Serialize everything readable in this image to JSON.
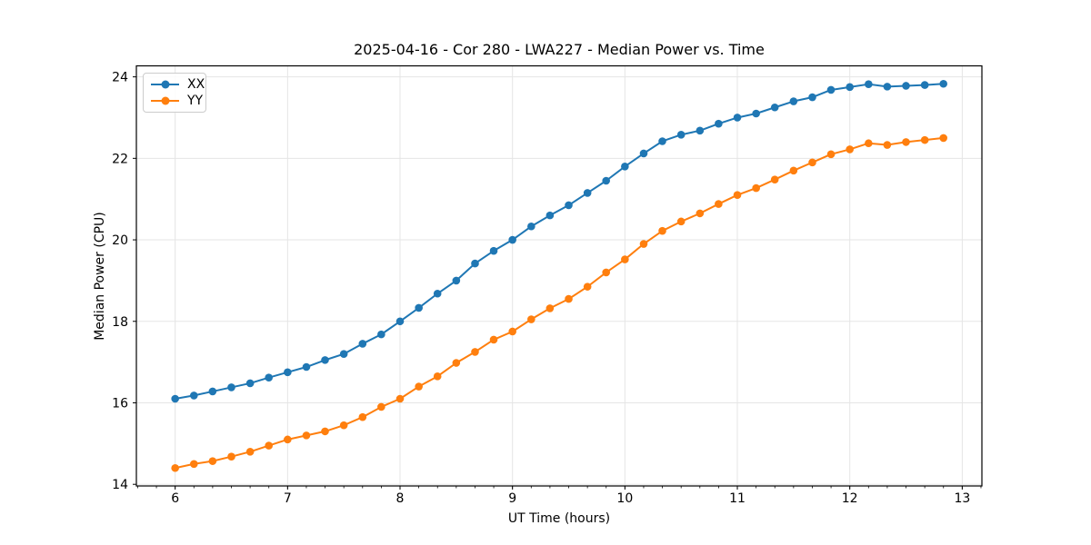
{
  "chart_data": {
    "type": "line",
    "title": "2025-04-16 - Cor 280 - LWA227 - Median Power vs. Time",
    "xlabel": "UT Time (hours)",
    "ylabel": "Median Power (CPU)",
    "xlim": [
      5.655,
      13.175
    ],
    "ylim": [
      13.96,
      24.27
    ],
    "x_ticks": [
      6,
      7,
      8,
      9,
      10,
      11,
      12,
      13
    ],
    "y_ticks": [
      14,
      16,
      18,
      20,
      22,
      24
    ],
    "x_minor_step": 0.166667,
    "grid": true,
    "grid_color": "#e5e5e5",
    "legend_position": "upper left",
    "x": [
      6.0,
      6.167,
      6.333,
      6.5,
      6.667,
      6.833,
      7.0,
      7.167,
      7.333,
      7.5,
      7.667,
      7.833,
      8.0,
      8.167,
      8.333,
      8.5,
      8.667,
      8.833,
      9.0,
      9.167,
      9.333,
      9.5,
      9.667,
      9.833,
      10.0,
      10.167,
      10.333,
      10.5,
      10.667,
      10.833,
      11.0,
      11.167,
      11.333,
      11.5,
      11.667,
      11.833,
      12.0,
      12.167,
      12.333,
      12.5,
      12.667,
      12.833
    ],
    "series": [
      {
        "name": "XX",
        "color": "#1f77b4",
        "values": [
          16.1,
          16.18,
          16.28,
          16.38,
          16.48,
          16.62,
          16.75,
          16.88,
          17.05,
          17.2,
          17.45,
          17.68,
          18.0,
          18.33,
          18.68,
          19.0,
          19.42,
          19.73,
          20.0,
          20.33,
          20.6,
          20.85,
          21.15,
          21.45,
          21.8,
          22.12,
          22.42,
          22.58,
          22.68,
          22.85,
          23.0,
          23.1,
          23.25,
          23.4,
          23.5,
          23.68,
          23.75,
          23.82,
          23.76,
          23.78,
          23.8,
          23.83
        ]
      },
      {
        "name": "YY",
        "color": "#ff7f0e",
        "values": [
          14.4,
          14.5,
          14.57,
          14.68,
          14.8,
          14.95,
          15.1,
          15.2,
          15.3,
          15.45,
          15.65,
          15.9,
          16.1,
          16.4,
          16.65,
          16.98,
          17.25,
          17.55,
          17.75,
          18.05,
          18.32,
          18.55,
          18.85,
          19.2,
          19.52,
          19.9,
          20.22,
          20.45,
          20.65,
          20.88,
          21.1,
          21.27,
          21.48,
          21.7,
          21.9,
          22.1,
          22.22,
          22.37,
          22.33,
          22.4,
          22.45,
          22.5
        ]
      }
    ]
  }
}
